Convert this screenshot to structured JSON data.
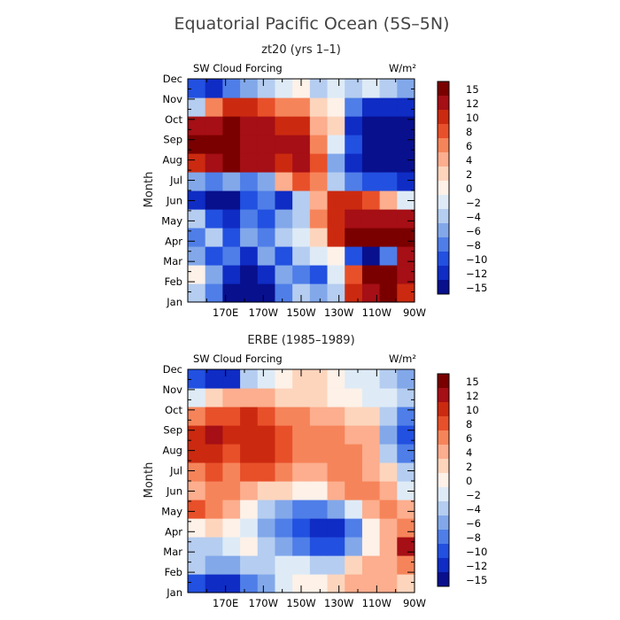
{
  "figure": {
    "title": "Equatorial Pacific Ocean (5S–5N)"
  },
  "legend": {
    "levels": [
      15,
      12,
      10,
      8,
      6,
      4,
      2,
      0,
      -2,
      -4,
      -6,
      -8,
      -10,
      -12,
      -15
    ],
    "labels": [
      "15",
      "12",
      "10",
      "8",
      "6",
      "4",
      "2",
      "0",
      "−2",
      "−4",
      "−6",
      "−8",
      "−10",
      "−12",
      "−15"
    ],
    "colors": [
      "#7a0000",
      "#a50f15",
      "#cb2a10",
      "#e8502a",
      "#f6845a",
      "#fcae8e",
      "#fdd5bd",
      "#fdf1e8",
      "#deebf7",
      "#b5cdf0",
      "#82a8ea",
      "#4f7ee8",
      "#2250e0",
      "#0f2cc4",
      "#08108e"
    ]
  },
  "chart_data": [
    {
      "type": "heatmap",
      "title": "zt20 (yrs 1–1)",
      "left_label": "SW Cloud Forcing",
      "right_label": "W/m²",
      "ylabel": "Month",
      "x_tick_labels": [
        "170E",
        "170W",
        "150W",
        "130W",
        "110W",
        "90W"
      ],
      "y_tick_labels": [
        "Jan",
        "Feb",
        "Mar",
        "Apr",
        "May",
        "Jun",
        "Jul",
        "Aug",
        "Sep",
        "Oct",
        "Nov",
        "Dec"
      ],
      "x": [
        150,
        160,
        170,
        180,
        190,
        200,
        210,
        220,
        230,
        240,
        250,
        260,
        270
      ],
      "y": [
        "Jan",
        "Feb",
        "Mar",
        "Apr",
        "May",
        "Jun",
        "Jul",
        "Aug",
        "Sep",
        "Oct",
        "Nov",
        "Dec"
      ],
      "z": [
        [
          -4,
          -8,
          -14,
          -16,
          -14,
          -8,
          -4,
          -6,
          -4,
          10,
          14,
          16,
          10
        ],
        [
          0,
          -6,
          -12,
          -16,
          -12,
          -6,
          -8,
          -10,
          -2,
          8,
          16,
          16,
          12
        ],
        [
          -6,
          -10,
          -8,
          -12,
          -6,
          -10,
          -4,
          -2,
          0,
          -10,
          -14,
          -8,
          12
        ],
        [
          -8,
          -4,
          -10,
          -6,
          -8,
          -4,
          -2,
          2,
          10,
          16,
          16,
          16,
          16
        ],
        [
          -4,
          -10,
          -12,
          -8,
          -10,
          -6,
          -4,
          6,
          10,
          12,
          14,
          14,
          14
        ],
        [
          -12,
          -14,
          -14,
          -10,
          -8,
          -12,
          -4,
          4,
          10,
          10,
          8,
          4,
          -2
        ],
        [
          -6,
          -8,
          -6,
          -8,
          -6,
          4,
          8,
          6,
          -4,
          -8,
          -10,
          -10,
          -12
        ],
        [
          10,
          14,
          16,
          14,
          12,
          10,
          12,
          8,
          -6,
          -12,
          -16,
          -16,
          -16
        ],
        [
          16,
          16,
          16,
          14,
          14,
          12,
          12,
          6,
          -2,
          -10,
          -16,
          -16,
          -16
        ],
        [
          12,
          14,
          16,
          14,
          12,
          10,
          10,
          4,
          2,
          -12,
          -16,
          -16,
          -16
        ],
        [
          -4,
          6,
          10,
          10,
          8,
          6,
          6,
          2,
          0,
          -8,
          -12,
          -12,
          -12
        ],
        [
          -10,
          -12,
          -8,
          -6,
          -4,
          -2,
          0,
          -4,
          -2,
          -4,
          -2,
          -4,
          -6
        ]
      ]
    },
    {
      "type": "heatmap",
      "title": "ERBE (1985–1989)",
      "left_label": "SW Cloud Forcing",
      "right_label": "W/m²",
      "ylabel": "Month",
      "x_tick_labels": [
        "170E",
        "170W",
        "150W",
        "130W",
        "110W",
        "90W"
      ],
      "y_tick_labels": [
        "Jan",
        "Feb",
        "Mar",
        "Apr",
        "May",
        "Jun",
        "Jul",
        "Aug",
        "Sep",
        "Oct",
        "Nov",
        "Dec"
      ],
      "x": [
        150,
        160,
        170,
        180,
        190,
        200,
        210,
        220,
        230,
        240,
        250,
        260,
        270
      ],
      "y": [
        "Jan",
        "Feb",
        "Mar",
        "Apr",
        "May",
        "Jun",
        "Jul",
        "Aug",
        "Sep",
        "Oct",
        "Nov",
        "Dec"
      ],
      "z": [
        [
          -10,
          -12,
          -12,
          -8,
          -6,
          -2,
          0,
          0,
          2,
          4,
          4,
          4,
          2
        ],
        [
          -4,
          -6,
          -6,
          -4,
          -4,
          -2,
          -2,
          -4,
          -4,
          2,
          4,
          4,
          6
        ],
        [
          -4,
          -4,
          -2,
          0,
          -4,
          -6,
          -8,
          -10,
          -10,
          -6,
          0,
          4,
          12
        ],
        [
          0,
          2,
          0,
          -2,
          -6,
          -8,
          -10,
          -12,
          -12,
          -8,
          0,
          4,
          6
        ],
        [
          8,
          6,
          4,
          0,
          -4,
          -6,
          -8,
          -8,
          -6,
          -2,
          4,
          6,
          4
        ],
        [
          4,
          6,
          6,
          4,
          2,
          2,
          0,
          0,
          4,
          6,
          6,
          4,
          -2
        ],
        [
          6,
          8,
          6,
          8,
          8,
          6,
          4,
          4,
          6,
          6,
          4,
          2,
          -4
        ],
        [
          10,
          10,
          8,
          10,
          10,
          8,
          6,
          6,
          6,
          6,
          4,
          -4,
          -8
        ],
        [
          10,
          12,
          10,
          10,
          10,
          8,
          6,
          6,
          6,
          4,
          4,
          -6,
          -10
        ],
        [
          6,
          8,
          8,
          10,
          8,
          6,
          6,
          4,
          4,
          2,
          2,
          -4,
          -8
        ],
        [
          -2,
          2,
          4,
          4,
          4,
          2,
          2,
          2,
          0,
          0,
          -2,
          -2,
          -4
        ],
        [
          -10,
          -12,
          -12,
          -4,
          -2,
          0,
          2,
          2,
          0,
          -2,
          -2,
          -4,
          -6
        ]
      ]
    }
  ]
}
